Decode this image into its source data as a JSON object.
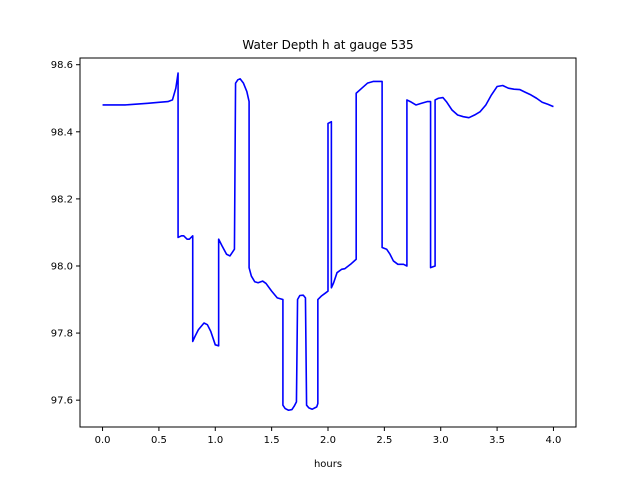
{
  "chart_data": {
    "type": "line",
    "title": "Water Depth h at gauge 535",
    "xlabel": "hours",
    "ylabel": "",
    "xlim": [
      -0.2,
      4.2
    ],
    "ylim": [
      97.52,
      98.62
    ],
    "x_ticks": [
      0.0,
      0.5,
      1.0,
      1.5,
      2.0,
      2.5,
      3.0,
      3.5,
      4.0
    ],
    "x_tick_labels": [
      "0.0",
      "0.5",
      "1.0",
      "1.5",
      "2.0",
      "2.5",
      "3.0",
      "3.5",
      "4.0"
    ],
    "y_ticks": [
      97.6,
      97.8,
      98.0,
      98.2,
      98.4,
      98.6
    ],
    "y_tick_labels": [
      "97.6",
      "97.8",
      "98.0",
      "98.2",
      "98.4",
      "98.6"
    ],
    "grid": false,
    "line_color": "#0000ff",
    "series": [
      {
        "x": [
          0.0,
          0.2,
          0.4,
          0.5,
          0.58,
          0.62,
          0.65,
          0.67,
          0.67,
          0.7,
          0.72,
          0.75,
          0.77,
          0.8,
          0.8,
          0.82,
          0.85,
          0.9,
          0.93,
          0.96,
          1.0,
          1.03,
          1.03,
          1.06,
          1.1,
          1.13,
          1.17,
          1.18,
          1.2,
          1.22,
          1.25,
          1.28,
          1.3,
          1.3,
          1.32,
          1.35,
          1.38,
          1.42,
          1.45,
          1.5,
          1.55,
          1.6,
          1.6,
          1.62,
          1.65,
          1.68,
          1.7,
          1.72,
          1.73,
          1.75,
          1.78,
          1.8,
          1.81,
          1.83,
          1.86,
          1.9,
          1.91,
          1.91,
          1.94,
          1.98,
          2.0,
          2.0,
          2.03,
          2.03,
          2.05,
          2.08,
          2.12,
          2.15,
          2.2,
          2.25,
          2.25,
          2.3,
          2.35,
          2.4,
          2.45,
          2.48,
          2.48,
          2.52,
          2.55,
          2.58,
          2.62,
          2.67,
          2.7,
          2.7,
          2.73,
          2.78,
          2.83,
          2.88,
          2.91,
          2.91,
          2.95,
          2.95,
          2.98,
          3.02,
          3.05,
          3.1,
          3.15,
          3.2,
          3.25,
          3.3,
          3.35,
          3.4,
          3.45,
          3.5,
          3.55,
          3.6,
          3.65,
          3.7,
          3.75,
          3.8,
          3.85,
          3.9,
          3.95,
          4.0
        ],
        "y": [
          98.48,
          98.48,
          98.485,
          98.488,
          98.49,
          98.495,
          98.53,
          98.575,
          98.085,
          98.09,
          98.09,
          98.08,
          98.08,
          98.09,
          97.775,
          97.79,
          97.81,
          97.83,
          97.825,
          97.805,
          97.765,
          97.762,
          98.08,
          98.06,
          98.035,
          98.03,
          98.05,
          98.545,
          98.555,
          98.558,
          98.545,
          98.52,
          98.49,
          97.995,
          97.97,
          97.953,
          97.95,
          97.955,
          97.948,
          97.925,
          97.905,
          97.9,
          97.585,
          97.575,
          97.57,
          97.572,
          97.582,
          97.595,
          97.9,
          97.912,
          97.913,
          97.905,
          97.585,
          97.577,
          97.573,
          97.58,
          97.59,
          97.9,
          97.91,
          97.92,
          97.925,
          98.425,
          98.43,
          97.935,
          97.95,
          97.98,
          97.99,
          97.992,
          98.005,
          98.02,
          98.515,
          98.53,
          98.545,
          98.55,
          98.55,
          98.55,
          98.055,
          98.05,
          98.035,
          98.015,
          98.005,
          98.005,
          98.0,
          98.495,
          98.49,
          98.48,
          98.485,
          98.49,
          98.49,
          97.995,
          98.0,
          98.495,
          98.5,
          98.502,
          98.49,
          98.465,
          98.45,
          98.445,
          98.442,
          98.45,
          98.46,
          98.48,
          98.51,
          98.535,
          98.538,
          98.53,
          98.527,
          98.526,
          98.518,
          98.51,
          98.5,
          98.488,
          98.482,
          98.475
        ]
      }
    ]
  }
}
